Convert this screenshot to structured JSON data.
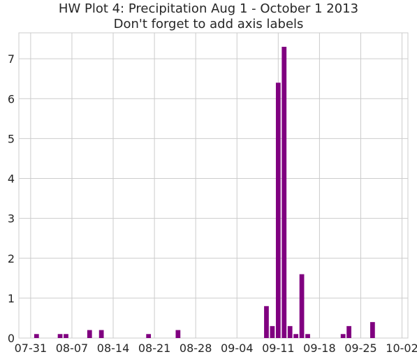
{
  "chart_data": {
    "type": "bar",
    "title": "HW Plot 4: Precipitation Aug 1 - October 1 2013",
    "subtitle": "Don't forget to add axis labels",
    "xlabel": "",
    "ylabel": "",
    "x_ticks": [
      "07-31",
      "08-07",
      "08-14",
      "08-21",
      "08-28",
      "09-04",
      "09-11",
      "09-18",
      "09-25",
      "10-02"
    ],
    "y_ticks": [
      "0",
      "1",
      "2",
      "3",
      "4",
      "5",
      "6",
      "7"
    ],
    "ylim": [
      0,
      7.65
    ],
    "xlim": [
      "2013-07-29",
      "2013-10-03"
    ],
    "grid": true,
    "bar_color": "#800080",
    "points": [
      {
        "date": "2013-08-01",
        "value": 0.1
      },
      {
        "date": "2013-08-05",
        "value": 0.1
      },
      {
        "date": "2013-08-06",
        "value": 0.1
      },
      {
        "date": "2013-08-10",
        "value": 0.2
      },
      {
        "date": "2013-08-12",
        "value": 0.2
      },
      {
        "date": "2013-08-20",
        "value": 0.1
      },
      {
        "date": "2013-08-25",
        "value": 0.2
      },
      {
        "date": "2013-09-09",
        "value": 0.8
      },
      {
        "date": "2013-09-10",
        "value": 0.3
      },
      {
        "date": "2013-09-11",
        "value": 6.4
      },
      {
        "date": "2013-09-12",
        "value": 7.3
      },
      {
        "date": "2013-09-13",
        "value": 0.3
      },
      {
        "date": "2013-09-14",
        "value": 0.1
      },
      {
        "date": "2013-09-15",
        "value": 1.6
      },
      {
        "date": "2013-09-16",
        "value": 0.1
      },
      {
        "date": "2013-09-22",
        "value": 0.1
      },
      {
        "date": "2013-09-23",
        "value": 0.3
      },
      {
        "date": "2013-09-27",
        "value": 0.4
      }
    ]
  }
}
